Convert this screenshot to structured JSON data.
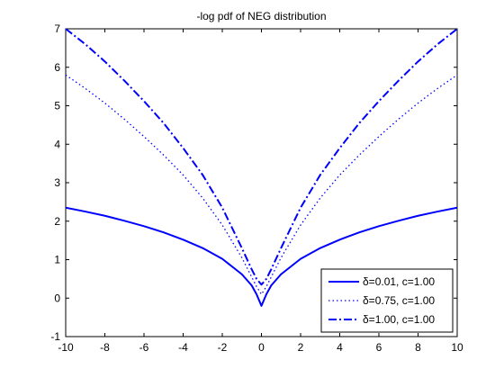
{
  "chart_data": {
    "type": "line",
    "title": "-log pdf of NEG distribution",
    "xlabel": "",
    "ylabel": "",
    "xlim": [
      -10,
      10
    ],
    "ylim": [
      -1,
      7
    ],
    "xticks": [
      -10,
      -8,
      -6,
      -4,
      -2,
      0,
      2,
      4,
      6,
      8,
      10
    ],
    "yticks": [
      -1,
      0,
      1,
      2,
      3,
      4,
      5,
      6,
      7
    ],
    "grid": false,
    "legend_position": "bottom-right",
    "series": [
      {
        "name": "δ=0.01, c=1.00",
        "line_style": "solid",
        "color": "#0000ff",
        "x": [
          -10,
          -9,
          -8,
          -7,
          -6,
          -5,
          -4,
          -3,
          -2,
          -1,
          -0.5,
          -0.25,
          0,
          0.25,
          0.5,
          1,
          2,
          3,
          4,
          5,
          6,
          7,
          8,
          9,
          10
        ],
        "y": [
          2.35,
          2.25,
          2.14,
          2.01,
          1.87,
          1.71,
          1.52,
          1.3,
          1.02,
          0.62,
          0.33,
          0.1,
          -0.2,
          0.1,
          0.33,
          0.62,
          1.02,
          1.3,
          1.52,
          1.71,
          1.87,
          2.01,
          2.14,
          2.25,
          2.35
        ]
      },
      {
        "name": "δ=0.75, c=1.00",
        "line_style": "dotted",
        "color": "#0000ff",
        "x": [
          -10,
          -9,
          -8,
          -7,
          -6,
          -5,
          -4,
          -3,
          -2,
          -1,
          -0.5,
          -0.25,
          0,
          0.25,
          0.5,
          1,
          2,
          3,
          4,
          5,
          6,
          7,
          8,
          9,
          10
        ],
        "y": [
          5.8,
          5.45,
          5.07,
          4.65,
          4.2,
          3.72,
          3.2,
          2.6,
          1.9,
          1.05,
          0.55,
          0.3,
          0.1,
          0.3,
          0.55,
          1.05,
          1.9,
          2.6,
          3.2,
          3.72,
          4.2,
          4.65,
          5.07,
          5.45,
          5.8
        ]
      },
      {
        "name": "δ=1.00, c=1.00",
        "line_style": "dash-dot",
        "color": "#0000ff",
        "x": [
          -10,
          -9,
          -8,
          -7,
          -6,
          -5,
          -4,
          -3,
          -2,
          -1,
          -0.5,
          -0.25,
          0,
          0.25,
          0.5,
          1,
          2,
          3,
          4,
          5,
          6,
          7,
          8,
          9,
          10
        ],
        "y": [
          7.0,
          6.6,
          6.15,
          5.65,
          5.12,
          4.55,
          3.9,
          3.2,
          2.35,
          1.3,
          0.75,
          0.5,
          0.35,
          0.5,
          0.75,
          1.3,
          2.35,
          3.2,
          3.9,
          4.55,
          5.12,
          5.65,
          6.15,
          6.6,
          7.0
        ]
      }
    ]
  }
}
